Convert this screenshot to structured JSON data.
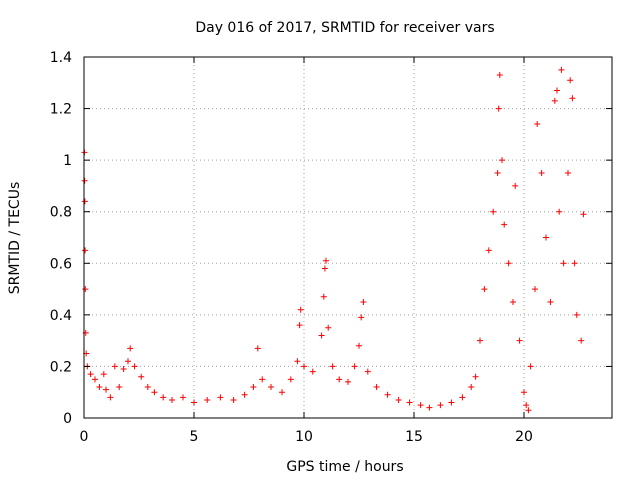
{
  "chart_data": {
    "type": "scatter",
    "title": "Day 016 of 2017, SRMTID for receiver vars",
    "xlabel": "GPS time / hours",
    "ylabel": "SRMTID / TECUs",
    "xlim": [
      0,
      24
    ],
    "ylim": [
      0,
      1.4
    ],
    "xticks": [
      0,
      5,
      10,
      15,
      20
    ],
    "xtick_labels": [
      "0",
      "5",
      "10",
      "15",
      "20"
    ],
    "yticks": [
      0,
      0.2,
      0.4,
      0.6,
      0.8,
      1,
      1.2,
      1.4
    ],
    "ytick_labels": [
      "0",
      "0.2",
      "0.4",
      "0.6",
      "0.8",
      "1",
      "1.2",
      "1.4"
    ],
    "grid": true,
    "marker": "+",
    "color": "#ff0000",
    "series": [
      {
        "name": "SRMTID",
        "points": [
          [
            0.02,
            1.03
          ],
          [
            0.03,
            0.92
          ],
          [
            0.04,
            0.84
          ],
          [
            0.05,
            0.65
          ],
          [
            0.06,
            0.5
          ],
          [
            0.08,
            0.33
          ],
          [
            0.1,
            0.25
          ],
          [
            0.15,
            0.2
          ],
          [
            0.3,
            0.17
          ],
          [
            0.5,
            0.15
          ],
          [
            0.7,
            0.12
          ],
          [
            0.9,
            0.17
          ],
          [
            1.0,
            0.11
          ],
          [
            1.2,
            0.08
          ],
          [
            1.4,
            0.2
          ],
          [
            1.6,
            0.12
          ],
          [
            1.8,
            0.19
          ],
          [
            2.0,
            0.22
          ],
          [
            2.1,
            0.27
          ],
          [
            2.3,
            0.2
          ],
          [
            2.6,
            0.16
          ],
          [
            2.9,
            0.12
          ],
          [
            3.2,
            0.1
          ],
          [
            3.6,
            0.08
          ],
          [
            4.0,
            0.07
          ],
          [
            4.5,
            0.08
          ],
          [
            5.0,
            0.06
          ],
          [
            5.6,
            0.07
          ],
          [
            6.2,
            0.08
          ],
          [
            6.8,
            0.07
          ],
          [
            7.3,
            0.09
          ],
          [
            7.7,
            0.12
          ],
          [
            7.9,
            0.27
          ],
          [
            8.1,
            0.15
          ],
          [
            8.5,
            0.12
          ],
          [
            9.0,
            0.1
          ],
          [
            9.4,
            0.15
          ],
          [
            9.7,
            0.22
          ],
          [
            9.8,
            0.36
          ],
          [
            9.85,
            0.42
          ],
          [
            10.0,
            0.2
          ],
          [
            10.4,
            0.18
          ],
          [
            10.8,
            0.32
          ],
          [
            10.9,
            0.47
          ],
          [
            10.95,
            0.58
          ],
          [
            11.0,
            0.61
          ],
          [
            11.1,
            0.35
          ],
          [
            11.3,
            0.2
          ],
          [
            11.6,
            0.15
          ],
          [
            12.0,
            0.14
          ],
          [
            12.3,
            0.2
          ],
          [
            12.5,
            0.28
          ],
          [
            12.6,
            0.39
          ],
          [
            12.7,
            0.45
          ],
          [
            12.9,
            0.18
          ],
          [
            13.3,
            0.12
          ],
          [
            13.8,
            0.09
          ],
          [
            14.3,
            0.07
          ],
          [
            14.8,
            0.06
          ],
          [
            15.3,
            0.05
          ],
          [
            15.7,
            0.04
          ],
          [
            16.2,
            0.05
          ],
          [
            16.7,
            0.06
          ],
          [
            17.2,
            0.08
          ],
          [
            17.6,
            0.12
          ],
          [
            17.8,
            0.16
          ],
          [
            18.0,
            0.3
          ],
          [
            18.2,
            0.5
          ],
          [
            18.4,
            0.65
          ],
          [
            18.6,
            0.8
          ],
          [
            18.8,
            0.95
          ],
          [
            18.85,
            1.2
          ],
          [
            18.9,
            1.33
          ],
          [
            19.0,
            1.0
          ],
          [
            19.1,
            0.75
          ],
          [
            19.3,
            0.6
          ],
          [
            19.5,
            0.45
          ],
          [
            19.6,
            0.9
          ],
          [
            19.8,
            0.3
          ],
          [
            20.0,
            0.1
          ],
          [
            20.1,
            0.05
          ],
          [
            20.2,
            0.03
          ],
          [
            20.3,
            0.2
          ],
          [
            20.5,
            0.5
          ],
          [
            20.6,
            1.14
          ],
          [
            20.8,
            0.95
          ],
          [
            21.0,
            0.7
          ],
          [
            21.2,
            0.45
          ],
          [
            21.4,
            1.23
          ],
          [
            21.5,
            1.27
          ],
          [
            21.6,
            0.8
          ],
          [
            21.7,
            1.35
          ],
          [
            21.8,
            0.6
          ],
          [
            22.0,
            0.95
          ],
          [
            22.1,
            1.31
          ],
          [
            22.2,
            1.24
          ],
          [
            22.3,
            0.6
          ],
          [
            22.4,
            0.4
          ],
          [
            22.6,
            0.3
          ],
          [
            22.7,
            0.79
          ]
        ]
      }
    ]
  }
}
